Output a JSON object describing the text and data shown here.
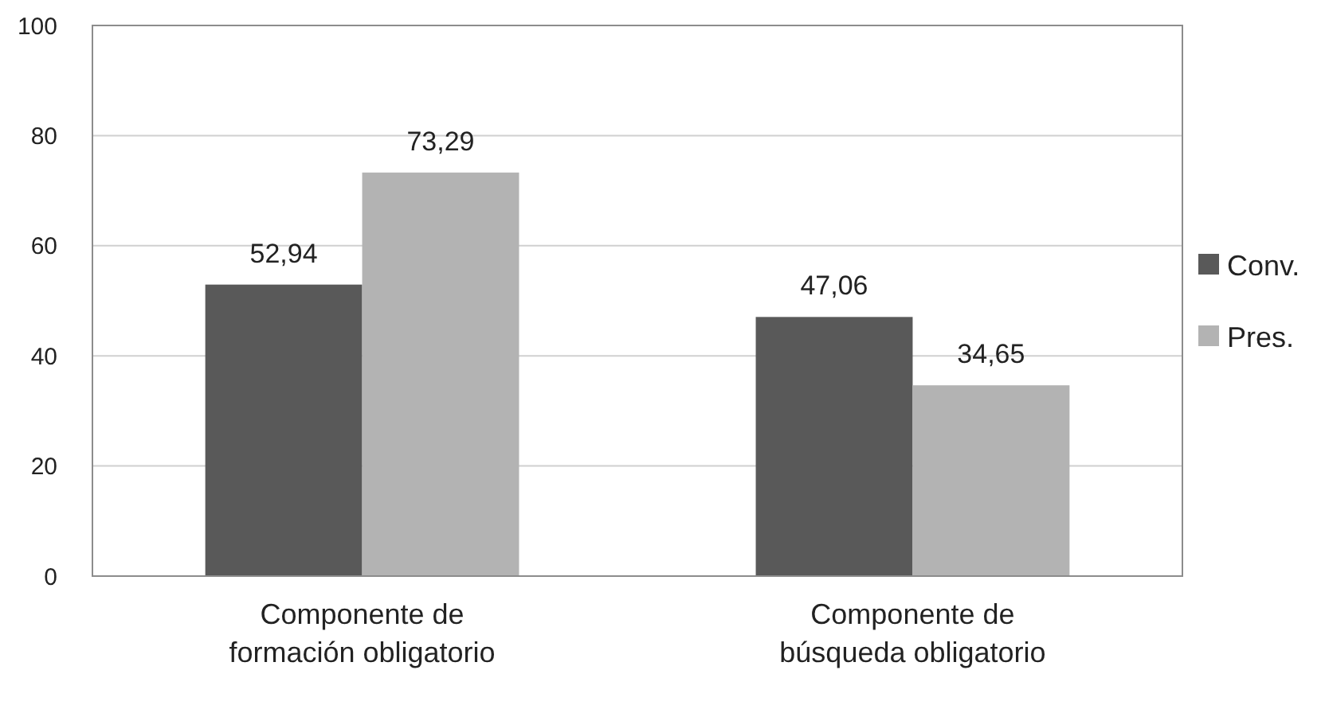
{
  "chart_data": {
    "type": "bar",
    "categories": [
      "Componente de formación obligatorio",
      "Componente de búsqueda obligatorio"
    ],
    "series": [
      {
        "name": "Conv.",
        "color": "#595959",
        "values": [
          52.94,
          47.06
        ],
        "value_labels": [
          "52,94",
          "47,06"
        ]
      },
      {
        "name": "Pres.",
        "color": "#b3b3b3",
        "values": [
          73.29,
          34.65
        ],
        "value_labels": [
          "73,29",
          "34,65"
        ]
      }
    ],
    "ylim": [
      0,
      100
    ],
    "yticks": [
      0,
      20,
      40,
      60,
      80,
      100
    ],
    "grid": "y",
    "legend": "right"
  }
}
